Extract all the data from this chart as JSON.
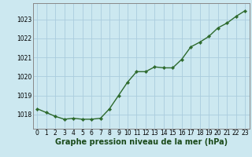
{
  "hours": [
    0,
    1,
    2,
    3,
    4,
    5,
    6,
    7,
    8,
    9,
    10,
    11,
    12,
    13,
    14,
    15,
    16,
    17,
    18,
    19,
    20,
    21,
    22,
    23
  ],
  "pressure": [
    1018.3,
    1018.1,
    1017.9,
    1017.75,
    1017.8,
    1017.75,
    1017.75,
    1017.8,
    1018.3,
    1019.0,
    1019.7,
    1020.25,
    1020.25,
    1020.5,
    1020.45,
    1020.45,
    1020.9,
    1021.55,
    1021.8,
    1022.1,
    1022.55,
    1022.8,
    1023.15,
    1023.45
  ],
  "line_color": "#2d6a2d",
  "marker": "D",
  "marker_size": 2.2,
  "line_width": 1.0,
  "bg_color": "#cce8f0",
  "grid_color": "#aaccdd",
  "border_color": "#888888",
  "xlabel": "Graphe pression niveau de la mer (hPa)",
  "xlabel_color": "#1a4a1a",
  "xlabel_fontsize": 7.0,
  "ytick_labels": [
    "1018",
    "1019",
    "1020",
    "1021",
    "1022",
    "1023"
  ],
  "ytick_values": [
    1018,
    1019,
    1020,
    1021,
    1022,
    1023
  ],
  "ylim": [
    1017.25,
    1023.85
  ],
  "xlim": [
    -0.5,
    23.5
  ],
  "xtick_labels": [
    "0",
    "1",
    "2",
    "3",
    "4",
    "5",
    "6",
    "7",
    "8",
    "9",
    "10",
    "11",
    "12",
    "13",
    "14",
    "15",
    "16",
    "17",
    "18",
    "19",
    "20",
    "21",
    "22",
    "23"
  ],
  "tick_fontsize": 5.5
}
